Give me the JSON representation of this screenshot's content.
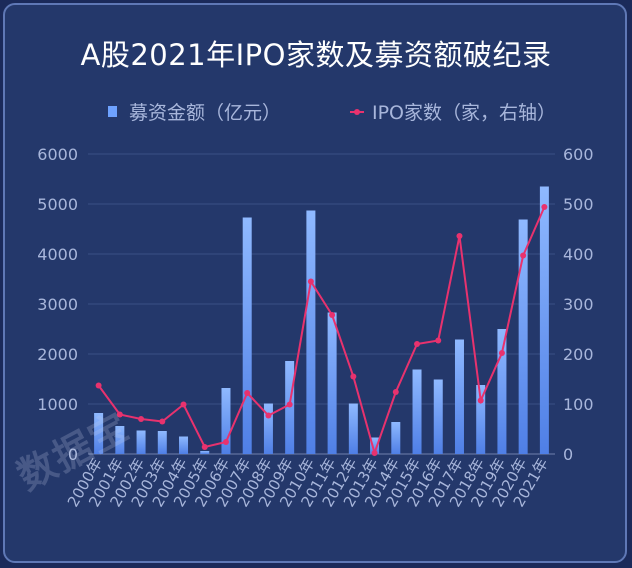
{
  "chart_data": {
    "type": "bar",
    "title": "A股2021年IPO家数及募资额破纪录",
    "categories": [
      "2000年",
      "2001年",
      "2002年",
      "2003年",
      "2004年",
      "2005年",
      "2006年",
      "2007年",
      "2008年",
      "2009年",
      "2010年",
      "2011年",
      "2012年",
      "2013年",
      "2014年",
      "2015年",
      "2016年",
      "2017年",
      "2018年",
      "2019年",
      "2020年",
      "2021年"
    ],
    "series": [
      {
        "name": "募资金额（亿元）",
        "type": "bar",
        "axis": "left",
        "color": "#6ea2ff",
        "values": [
          820,
          560,
          470,
          460,
          350,
          60,
          1320,
          4730,
          1010,
          1860,
          4870,
          2830,
          1010,
          330,
          640,
          1690,
          1490,
          2290,
          1380,
          2500,
          4690,
          5350
        ]
      },
      {
        "name": "IPO家数（家，右轴）",
        "type": "line",
        "axis": "right",
        "color": "#e8326e",
        "values": [
          137,
          79,
          70,
          65,
          99,
          14,
          24,
          122,
          77,
          99,
          345,
          278,
          155,
          2,
          124,
          220,
          227,
          436,
          107,
          202,
          397,
          494
        ]
      }
    ],
    "ylim_left": [
      0,
      6000
    ],
    "ylim_right": [
      0,
      600
    ],
    "yticks_left": [
      "0",
      "1000",
      "2000",
      "3000",
      "4000",
      "5000",
      "6000"
    ],
    "yticks_right": [
      "0",
      "100",
      "200",
      "300",
      "400",
      "500",
      "600"
    ],
    "grid": true,
    "legend_position": "top"
  },
  "watermark": "数据宝"
}
